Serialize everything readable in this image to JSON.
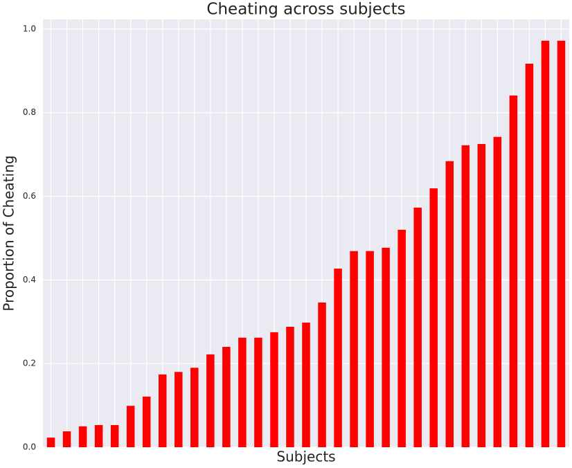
{
  "chart_data": {
    "type": "bar",
    "title": "Cheating across subjects",
    "xlabel": "Subjects",
    "ylabel": "Proportion of Cheating",
    "categories": [
      null,
      null,
      null,
      null,
      null,
      null,
      null,
      null,
      null,
      null,
      null,
      null,
      null,
      null,
      null,
      null,
      null,
      null,
      null,
      null,
      null,
      null,
      null,
      null,
      null,
      null,
      null,
      null,
      null,
      null,
      null,
      null,
      null
    ],
    "values": [
      0.023,
      0.038,
      0.05,
      0.053,
      0.053,
      0.099,
      0.121,
      0.174,
      0.18,
      0.19,
      0.222,
      0.24,
      0.262,
      0.262,
      0.275,
      0.288,
      0.298,
      0.346,
      0.427,
      0.469,
      0.469,
      0.477,
      0.52,
      0.573,
      0.619,
      0.684,
      0.722,
      0.725,
      0.742,
      0.841,
      0.917,
      0.972,
      0.972
    ],
    "color": "#ff0000",
    "ylim": [
      0,
      1.023
    ],
    "yticks": [
      {
        "value": 0,
        "label": "0.0"
      },
      0.2,
      0.4,
      0.6,
      0.8,
      {
        "value": 1,
        "label": "1.0"
      }
    ],
    "grid": true
  }
}
